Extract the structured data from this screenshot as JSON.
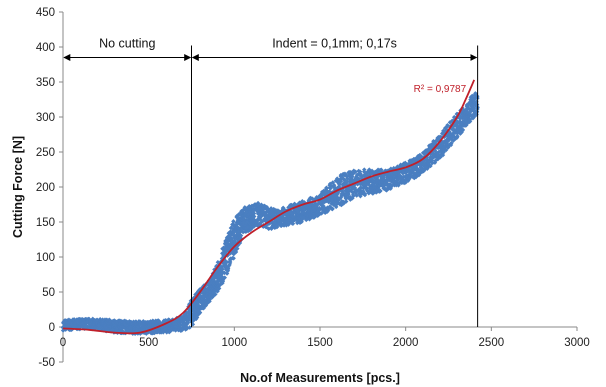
{
  "chart_data": {
    "type": "scatter",
    "title": "",
    "xlabel": "No.of Measurements [pcs.]",
    "ylabel": "Cutting Force [N]",
    "xlim": [
      0,
      3000
    ],
    "ylim": [
      -50,
      450
    ],
    "x_ticks": [
      "0",
      "500",
      "1000",
      "1500",
      "2000",
      "2500",
      "3000"
    ],
    "y_ticks": [
      "-50",
      "0",
      "50",
      "100",
      "150",
      "200",
      "250",
      "300",
      "350",
      "400",
      "450"
    ],
    "grid": false,
    "legend": "none",
    "colors": {
      "points": "#4a7fc1",
      "trend": "#c0202a",
      "axes": "#888888",
      "markers": "#000000"
    },
    "scatter_envelope": [
      [
        0,
        -5,
        10
      ],
      [
        150,
        -2,
        12
      ],
      [
        300,
        -8,
        10
      ],
      [
        450,
        -10,
        8
      ],
      [
        600,
        -8,
        10
      ],
      [
        700,
        -5,
        15
      ],
      [
        750,
        0,
        40
      ],
      [
        800,
        20,
        55
      ],
      [
        850,
        35,
        65
      ],
      [
        900,
        50,
        90
      ],
      [
        950,
        70,
        125
      ],
      [
        1000,
        100,
        155
      ],
      [
        1050,
        130,
        170
      ],
      [
        1100,
        140,
        175
      ],
      [
        1150,
        145,
        178
      ],
      [
        1200,
        140,
        170
      ],
      [
        1250,
        140,
        168
      ],
      [
        1300,
        145,
        172
      ],
      [
        1400,
        150,
        180
      ],
      [
        1500,
        160,
        190
      ],
      [
        1600,
        170,
        215
      ],
      [
        1700,
        185,
        225
      ],
      [
        1800,
        190,
        225
      ],
      [
        1900,
        195,
        225
      ],
      [
        2000,
        205,
        235
      ],
      [
        2100,
        220,
        250
      ],
      [
        2200,
        240,
        275
      ],
      [
        2300,
        270,
        305
      ],
      [
        2350,
        285,
        320
      ],
      [
        2400,
        300,
        335
      ],
      [
        2420,
        305,
        335
      ]
    ],
    "trendline": [
      [
        0,
        -2
      ],
      [
        150,
        -4
      ],
      [
        300,
        -8
      ],
      [
        450,
        -8
      ],
      [
        600,
        5
      ],
      [
        700,
        20
      ],
      [
        800,
        50
      ],
      [
        900,
        85
      ],
      [
        1000,
        115
      ],
      [
        1100,
        135
      ],
      [
        1200,
        150
      ],
      [
        1300,
        165
      ],
      [
        1400,
        175
      ],
      [
        1500,
        182
      ],
      [
        1600,
        195
      ],
      [
        1700,
        205
      ],
      [
        1800,
        215
      ],
      [
        1900,
        222
      ],
      [
        2000,
        228
      ],
      [
        2100,
        240
      ],
      [
        2200,
        265
      ],
      [
        2300,
        300
      ],
      [
        2350,
        325
      ],
      [
        2400,
        353
      ]
    ],
    "r_squared_label": "R² = 0,9787",
    "regions": [
      {
        "label": "No cutting",
        "x_start": 0,
        "x_end": 750
      },
      {
        "label": "Indent = 0,1mm; 0,17s",
        "x_start": 750,
        "x_end": 2420
      }
    ],
    "region_arrow_y": 385,
    "boundary_lines_x": [
      750,
      2420
    ]
  }
}
